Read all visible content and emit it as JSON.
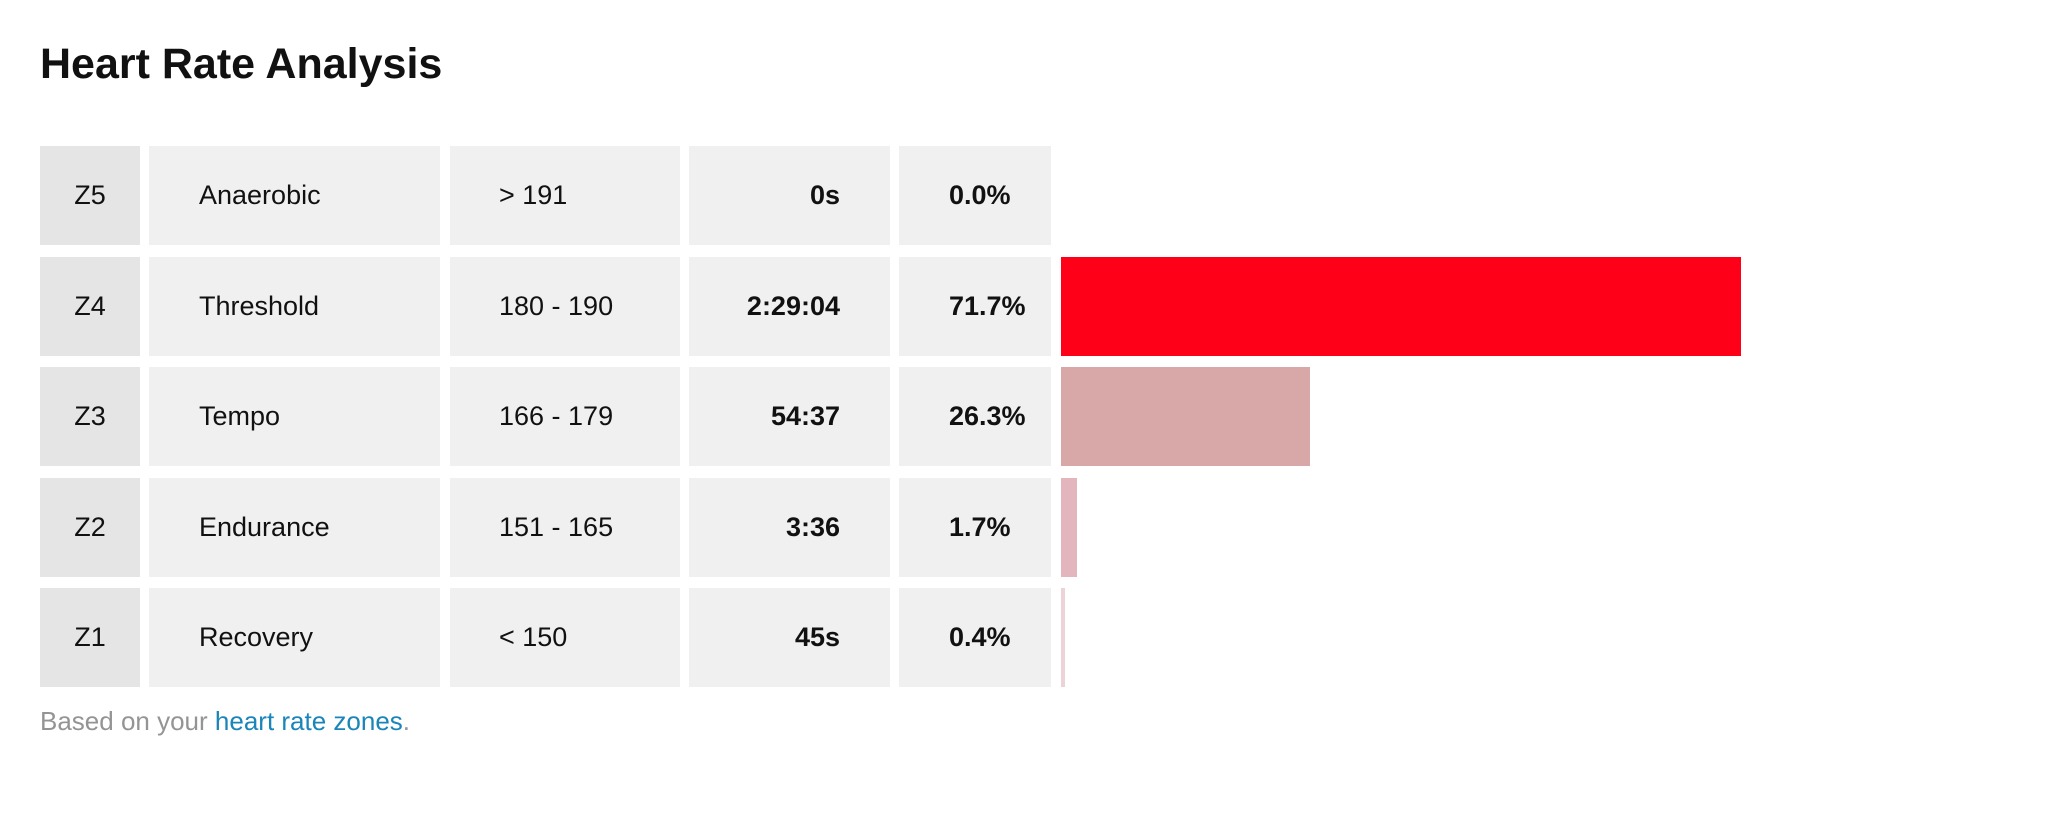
{
  "header": {
    "title": "Heart Rate Analysis"
  },
  "table": {
    "rows": [
      {
        "zone": "Z5",
        "name": "Anaerobic",
        "range": "> 191",
        "time": "0s",
        "percent": {
          "value": 0.0,
          "label": "0.0%"
        },
        "color": "#ff0019"
      },
      {
        "zone": "Z4",
        "name": "Threshold",
        "range": "180 - 190",
        "time": "2:29:04",
        "percent": {
          "value": 71.7,
          "label": "71.7%"
        },
        "color": "#ff0019"
      },
      {
        "zone": "Z3",
        "name": "Tempo",
        "range": "166 - 179",
        "time": "54:37",
        "percent": {
          "value": 26.3,
          "label": "26.3%"
        },
        "color": "#d8a7a8"
      },
      {
        "zone": "Z2",
        "name": "Endurance",
        "range": "151 - 165",
        "time": "3:36",
        "percent": {
          "value": 1.7,
          "label": "1.7%"
        },
        "color": "#e2b6bc"
      },
      {
        "zone": "Z1",
        "name": "Recovery",
        "range": "< 150",
        "time": "45s",
        "percent": {
          "value": 0.4,
          "label": "0.4%"
        },
        "color": "#ecd3d8"
      }
    ]
  },
  "footer": {
    "prefix": "Based on your",
    "link": "heart rate zones",
    "suffix": "."
  }
}
